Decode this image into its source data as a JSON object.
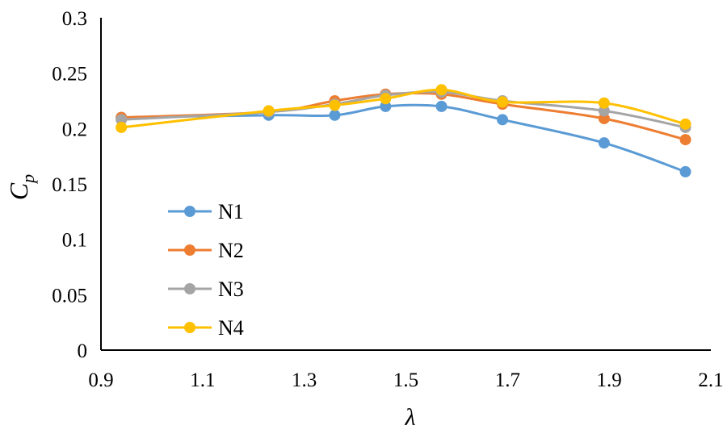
{
  "chart_data": {
    "type": "line",
    "xlabel": "λ",
    "ylabel": {
      "base": "C",
      "sub": "p"
    },
    "xlim": [
      0.9,
      2.1
    ],
    "ylim": [
      0,
      0.3
    ],
    "xticks": [
      "0.9",
      "1.1",
      "1.3",
      "1.5",
      "1.7",
      "1.9",
      "2.1"
    ],
    "yticks": [
      "0",
      "0.05",
      "0.1",
      "0.15",
      "0.2",
      "0.25",
      "0.3"
    ],
    "grid": false,
    "legend_position": "bottom-left",
    "x": [
      0.94,
      1.23,
      1.36,
      1.46,
      1.57,
      1.69,
      1.89,
      2.05
    ],
    "series": [
      {
        "name": "N1",
        "color": "#5b9bd5",
        "values": [
          0.21,
          0.212,
          0.212,
          0.22,
          0.22,
          0.208,
          0.187,
          0.161
        ]
      },
      {
        "name": "N2",
        "color": "#ed7d31",
        "values": [
          0.21,
          0.215,
          0.225,
          0.231,
          0.231,
          0.222,
          0.209,
          0.19
        ]
      },
      {
        "name": "N3",
        "color": "#a5a5a5",
        "values": [
          0.208,
          0.215,
          0.222,
          0.23,
          0.233,
          0.225,
          0.216,
          0.201
        ]
      },
      {
        "name": "N4",
        "color": "#ffc000",
        "values": [
          0.201,
          0.216,
          0.221,
          0.227,
          0.235,
          0.224,
          0.223,
          0.204
        ]
      }
    ]
  }
}
